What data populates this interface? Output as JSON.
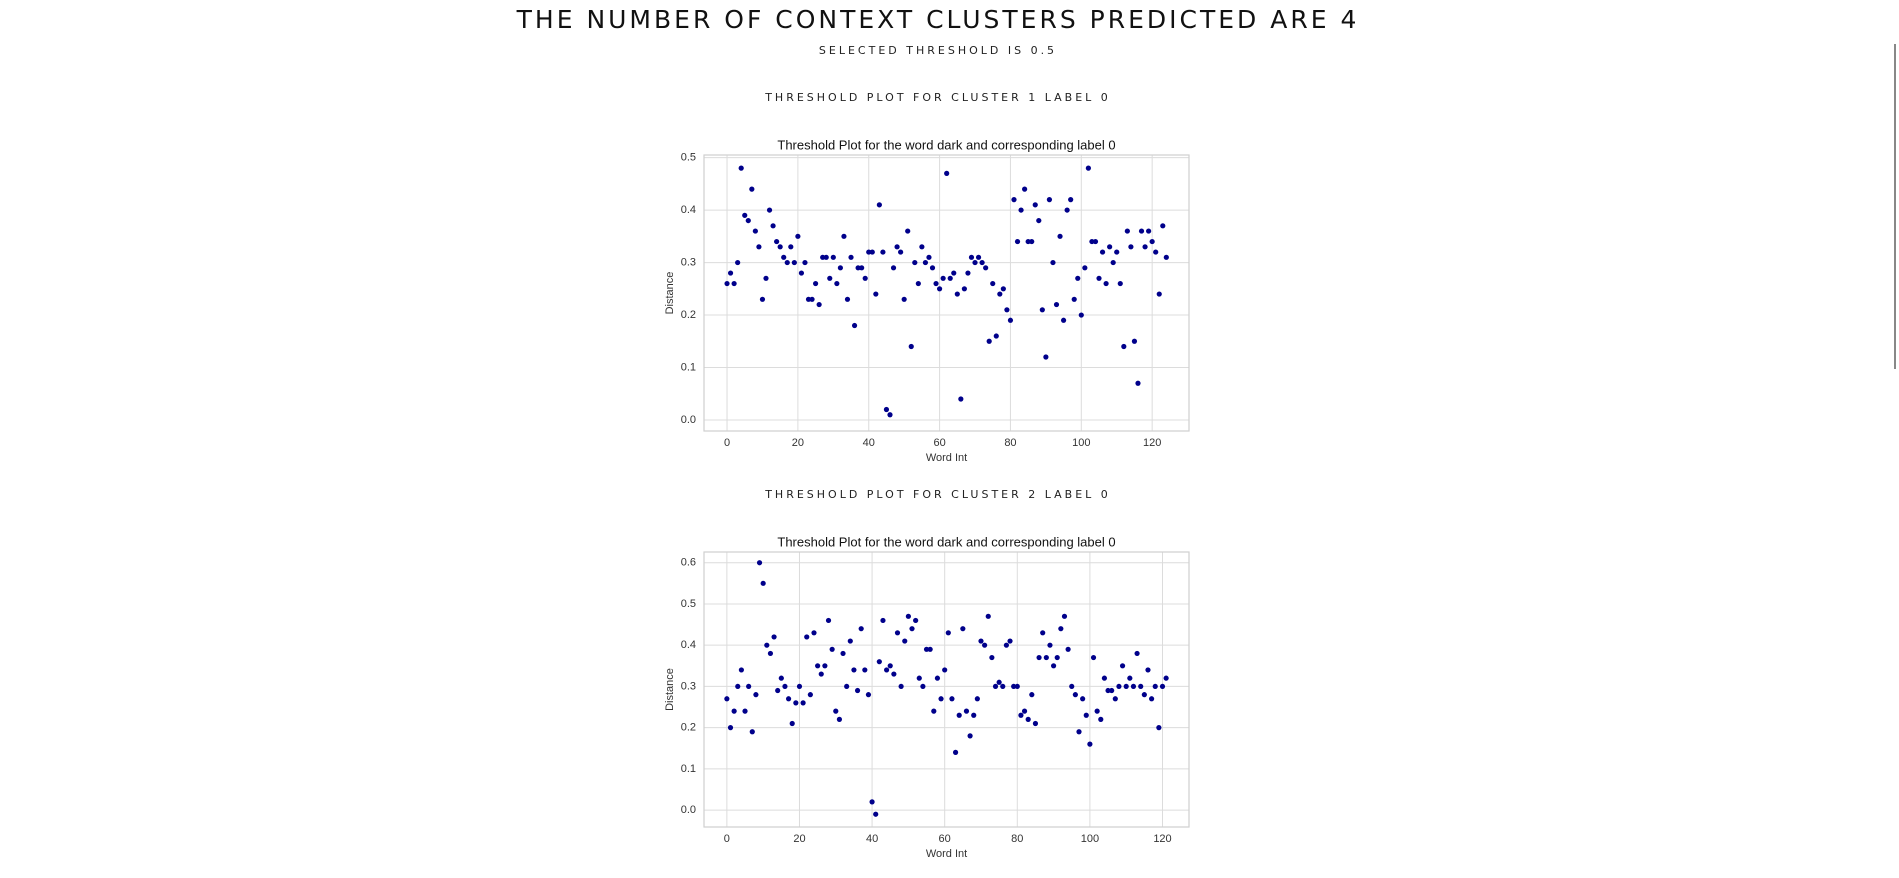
{
  "header": {
    "title": "THE NUMBER OF CONTEXT CLUSTERS PREDICTED ARE 4",
    "subtitle": "SELECTED THRESHOLD IS 0.5"
  },
  "sections": [
    {
      "heading": "THRESHOLD PLOT FOR CLUSTER 1 LABEL 0"
    },
    {
      "heading": "THRESHOLD PLOT FOR CLUSTER 2 LABEL 0"
    }
  ],
  "chart_data": [
    {
      "type": "scatter",
      "title": "Threshold Plot for the word dark and corresponding label 0",
      "xlabel": "Word Int",
      "ylabel": "Distance",
      "color": "#00008b",
      "grid": true,
      "xlim": [
        -6.5,
        130.4
      ],
      "ylim": [
        -0.021,
        0.505
      ],
      "xticks": [
        0,
        20,
        40,
        60,
        80,
        100,
        120
      ],
      "yticks": [
        {
          "value": 0,
          "label": "0.0"
        },
        0.1,
        0.2,
        0.3,
        0.4,
        0.5
      ],
      "x": [
        0,
        1,
        2,
        3,
        4,
        5,
        6,
        7,
        8,
        9,
        10,
        11,
        12,
        13,
        14,
        15,
        16,
        17,
        18,
        19,
        20,
        21,
        22,
        23,
        24,
        25,
        26,
        27,
        28,
        29,
        30,
        31,
        32,
        33,
        34,
        35,
        36,
        37,
        38,
        39,
        40,
        41,
        42,
        43,
        44,
        45,
        46,
        47,
        48,
        49,
        50,
        51,
        52,
        53,
        54,
        55,
        56,
        57,
        58,
        59,
        60,
        61,
        62,
        63,
        64,
        65,
        66,
        67,
        68,
        69,
        70,
        71,
        72,
        73,
        74,
        75,
        76,
        77,
        78,
        79,
        80,
        81,
        82,
        83,
        84,
        85,
        86,
        87,
        88,
        89,
        90,
        91,
        92,
        93,
        94,
        95,
        96,
        97,
        98,
        99,
        100,
        101,
        102,
        103,
        104,
        105,
        106,
        107,
        108,
        109,
        110,
        111,
        112,
        113,
        114,
        115,
        116,
        117,
        118,
        119,
        120,
        121,
        122,
        123,
        124
      ],
      "values": [
        0.26,
        0.28,
        0.26,
        0.3,
        0.48,
        0.39,
        0.38,
        0.44,
        0.36,
        0.33,
        0.23,
        0.27,
        0.4,
        0.37,
        0.34,
        0.33,
        0.31,
        0.3,
        0.33,
        0.3,
        0.35,
        0.28,
        0.3,
        0.23,
        0.23,
        0.26,
        0.22,
        0.31,
        0.31,
        0.27,
        0.31,
        0.26,
        0.29,
        0.35,
        0.23,
        0.31,
        0.18,
        0.29,
        0.29,
        0.27,
        0.32,
        0.32,
        0.24,
        0.41,
        0.32,
        0.02,
        0.01,
        0.29,
        0.33,
        0.32,
        0.23,
        0.36,
        0.14,
        0.3,
        0.26,
        0.33,
        0.3,
        0.31,
        0.29,
        0.26,
        0.25,
        0.27,
        0.47,
        0.27,
        0.28,
        0.24,
        0.04,
        0.25,
        0.28,
        0.31,
        0.3,
        0.31,
        0.3,
        0.29,
        0.15,
        0.26,
        0.16,
        0.24,
        0.25,
        0.21,
        0.19,
        0.42,
        0.34,
        0.4,
        0.44,
        0.34,
        0.34,
        0.41,
        0.38,
        0.21,
        0.12,
        0.42,
        0.3,
        0.22,
        0.35,
        0.19,
        0.4,
        0.42,
        0.23,
        0.27,
        0.2,
        0.29,
        0.48,
        0.34,
        0.34,
        0.27,
        0.32,
        0.26,
        0.33,
        0.3,
        0.32,
        0.26,
        0.14,
        0.36,
        0.33,
        0.15,
        0.07,
        0.36,
        0.33,
        0.36,
        0.34,
        0.32,
        0.24,
        0.37,
        0.31
      ]
    },
    {
      "type": "scatter",
      "title": "Threshold Plot for the word dark and corresponding label 0",
      "xlabel": "Word Int",
      "ylabel": "Distance",
      "color": "#00008b",
      "grid": true,
      "xlim": [
        -6.3,
        127.3
      ],
      "ylim": [
        -0.041,
        0.626
      ],
      "xticks": [
        0,
        20,
        40,
        60,
        80,
        100,
        120
      ],
      "yticks": [
        {
          "value": 0,
          "label": "0.0"
        },
        0.1,
        0.2,
        0.3,
        0.4,
        0.5,
        0.6
      ],
      "x": [
        0,
        1,
        2,
        3,
        4,
        5,
        6,
        7,
        8,
        9,
        10,
        11,
        12,
        13,
        14,
        15,
        16,
        17,
        18,
        19,
        20,
        21,
        22,
        23,
        24,
        25,
        26,
        27,
        28,
        29,
        30,
        31,
        32,
        33,
        34,
        35,
        36,
        37,
        38,
        39,
        40,
        41,
        42,
        43,
        44,
        45,
        46,
        47,
        48,
        49,
        50,
        51,
        52,
        53,
        54,
        55,
        56,
        57,
        58,
        59,
        60,
        61,
        62,
        63,
        64,
        65,
        66,
        67,
        68,
        69,
        70,
        71,
        72,
        73,
        74,
        75,
        76,
        77,
        78,
        79,
        80,
        81,
        82,
        83,
        84,
        85,
        86,
        87,
        88,
        89,
        90,
        91,
        92,
        93,
        94,
        95,
        96,
        97,
        98,
        99,
        100,
        101,
        102,
        103,
        104,
        105,
        106,
        107,
        108,
        109,
        110,
        111,
        112,
        113,
        114,
        115,
        116,
        117,
        118,
        119,
        120,
        121
      ],
      "values": [
        0.27,
        0.2,
        0.24,
        0.3,
        0.34,
        0.24,
        0.3,
        0.19,
        0.28,
        0.6,
        0.55,
        0.4,
        0.38,
        0.42,
        0.29,
        0.32,
        0.3,
        0.27,
        0.21,
        0.26,
        0.3,
        0.26,
        0.42,
        0.28,
        0.43,
        0.35,
        0.33,
        0.35,
        0.46,
        0.39,
        0.24,
        0.22,
        0.38,
        0.3,
        0.41,
        0.34,
        0.29,
        0.44,
        0.34,
        0.28,
        0.02,
        -0.01,
        0.36,
        0.46,
        0.34,
        0.35,
        0.33,
        0.43,
        0.3,
        0.41,
        0.47,
        0.44,
        0.46,
        0.32,
        0.3,
        0.39,
        0.39,
        0.24,
        0.32,
        0.27,
        0.34,
        0.43,
        0.27,
        0.14,
        0.23,
        0.44,
        0.24,
        0.18,
        0.23,
        0.27,
        0.41,
        0.4,
        0.47,
        0.37,
        0.3,
        0.31,
        0.3,
        0.4,
        0.41,
        0.3,
        0.3,
        0.23,
        0.24,
        0.22,
        0.28,
        0.21,
        0.37,
        0.43,
        0.37,
        0.4,
        0.35,
        0.37,
        0.44,
        0.47,
        0.39,
        0.3,
        0.28,
        0.19,
        0.27,
        0.23,
        0.16,
        0.37,
        0.24,
        0.22,
        0.32,
        0.29,
        0.29,
        0.27,
        0.3,
        0.35,
        0.3,
        0.32,
        0.3,
        0.38,
        0.3,
        0.28,
        0.34,
        0.27,
        0.3,
        0.2,
        0.3,
        0.32
      ]
    }
  ]
}
